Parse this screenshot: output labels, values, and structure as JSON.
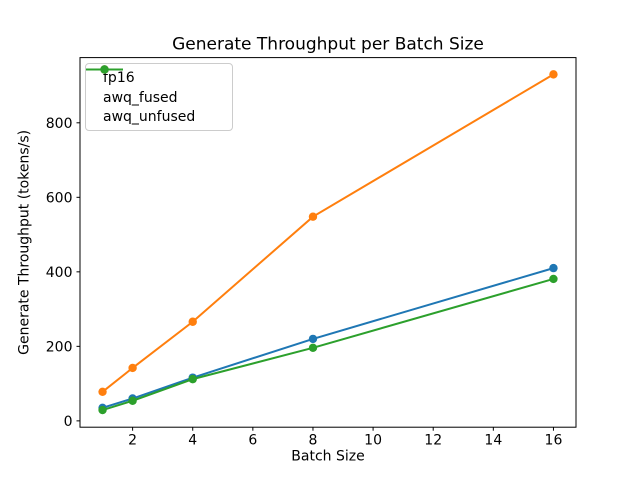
{
  "chart_data": {
    "type": "line",
    "title": "Generate Throughput per Batch Size",
    "xlabel": "Batch Size",
    "ylabel": "Generate Throughput (tokens/s)",
    "x": [
      1,
      2,
      4,
      8,
      16
    ],
    "series": [
      {
        "name": "fp16",
        "color": "#1f77b4",
        "values": [
          35,
          60,
          116,
          220,
          410
        ]
      },
      {
        "name": "awq_fused",
        "color": "#ff7f0e",
        "values": [
          78,
          142,
          266,
          548,
          930
        ]
      },
      {
        "name": "awq_unfused",
        "color": "#2ca02c",
        "values": [
          29,
          54,
          112,
          196,
          381
        ]
      }
    ],
    "x_ticks": [
      2,
      4,
      6,
      8,
      10,
      12,
      14,
      16
    ],
    "y_ticks": [
      0,
      200,
      400,
      600,
      800
    ],
    "xlim": [
      0.25,
      16.75
    ],
    "ylim": [
      -17,
      975
    ],
    "grid": false,
    "marker": "circle",
    "legend_position": "upper left",
    "background": "#ffffff",
    "axis_color": "#000000"
  }
}
